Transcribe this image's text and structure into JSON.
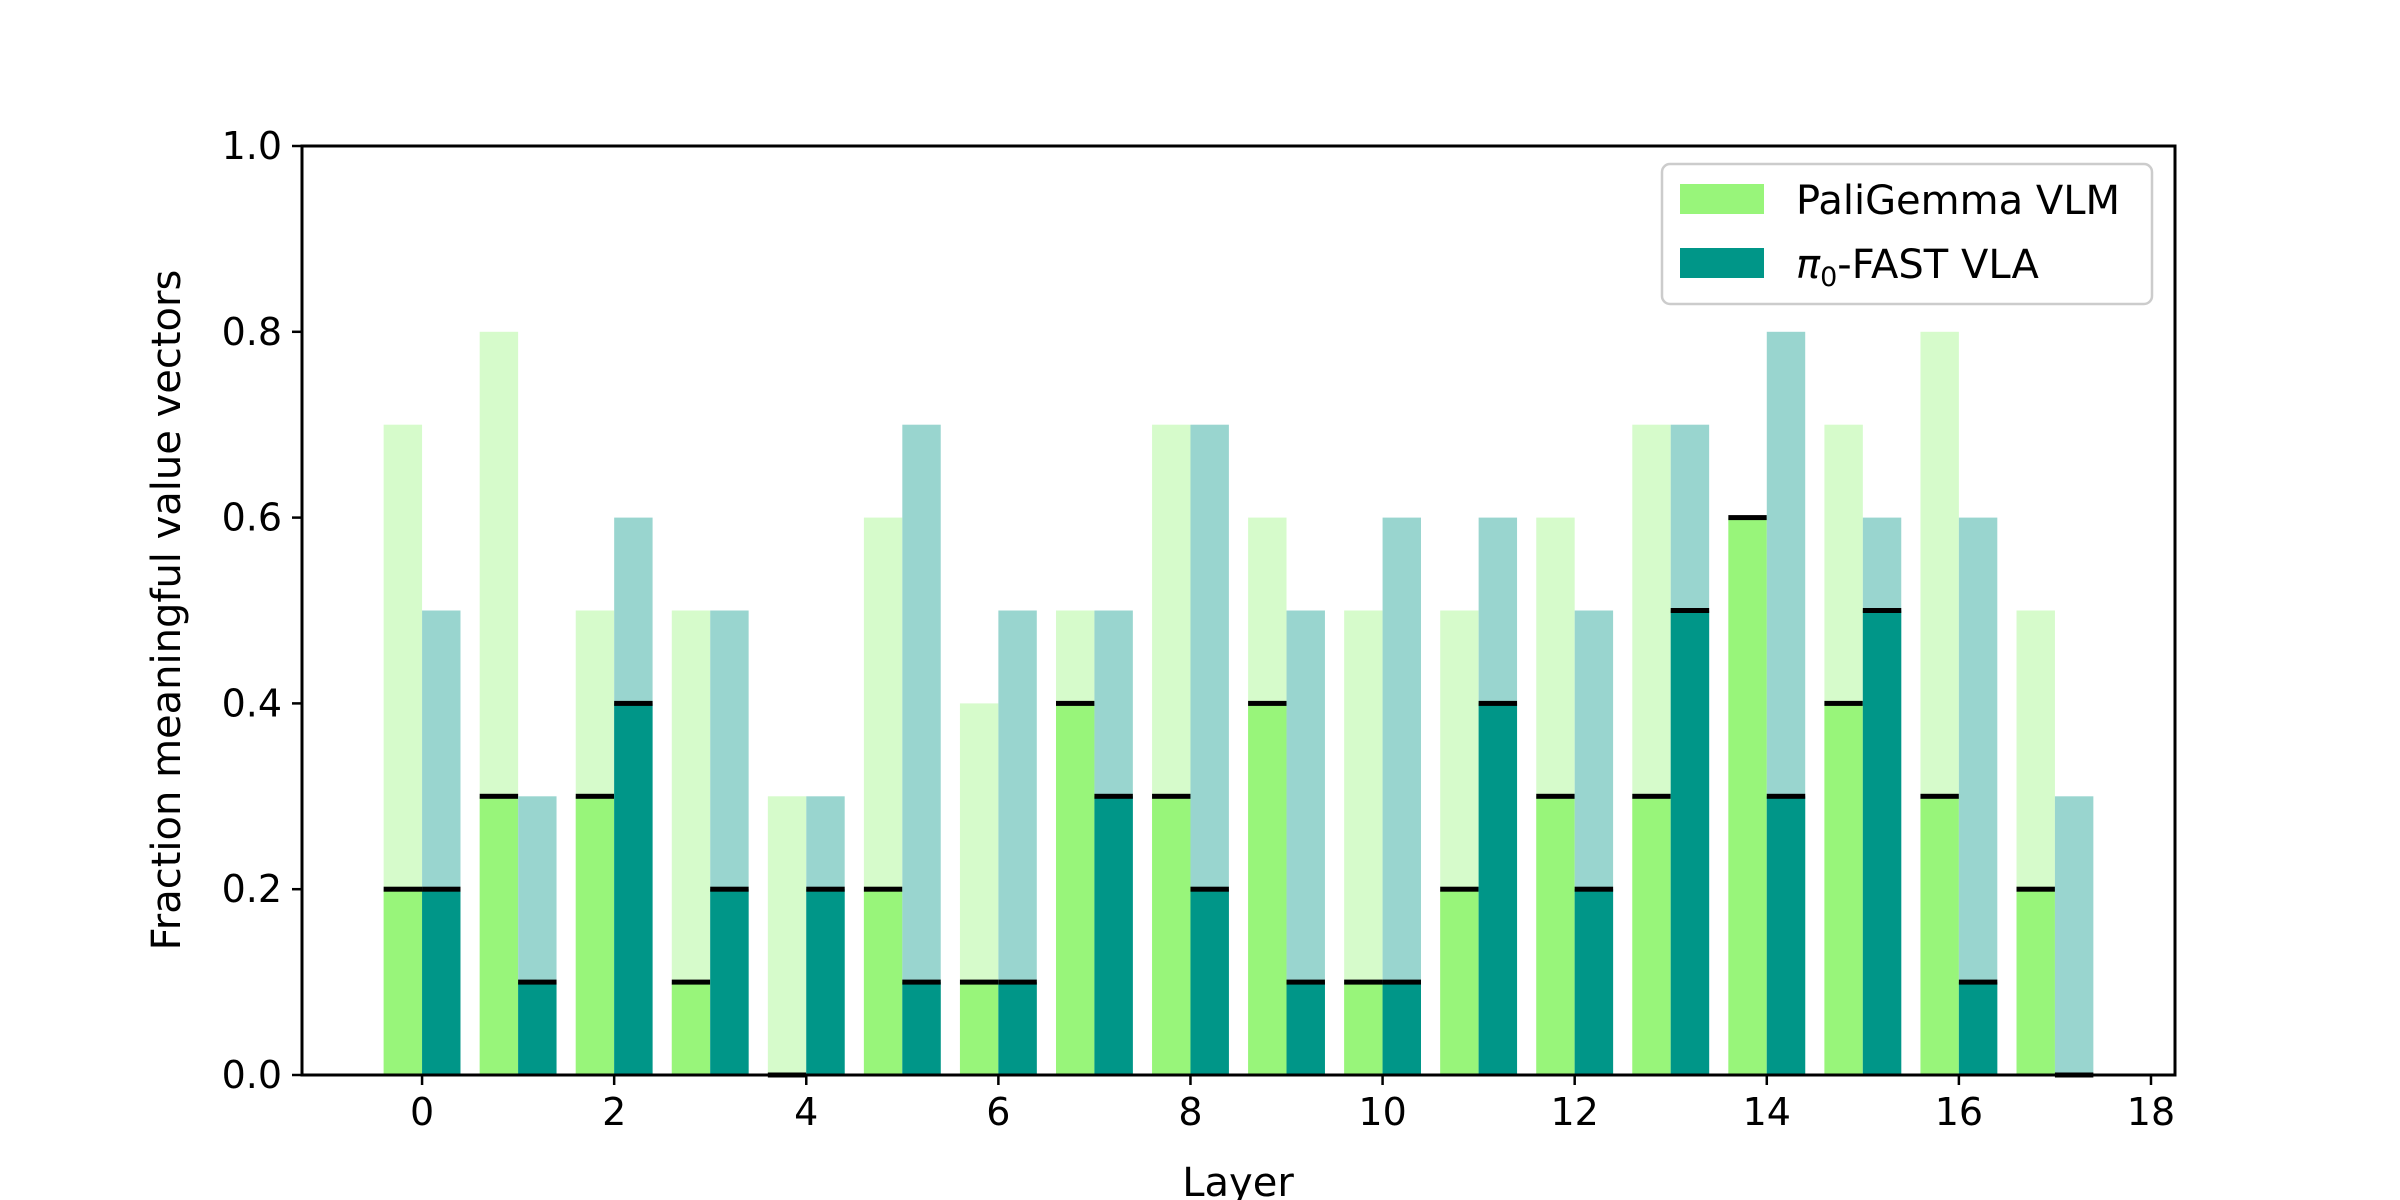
{
  "chart_data": {
    "type": "bar",
    "title": "",
    "xlabel": "Layer",
    "ylabel": "Fraction meaningful value vectors",
    "xlim": [
      -1.25,
      18.25
    ],
    "ylim": [
      0.0,
      1.0
    ],
    "x_ticks": [
      "0",
      "2",
      "4",
      "6",
      "8",
      "10",
      "12",
      "14",
      "16",
      "18"
    ],
    "y_ticks": [
      "0.0",
      "0.2",
      "0.4",
      "0.6",
      "0.8",
      "1.0"
    ],
    "grid": false,
    "legend_position": "top-right",
    "layers": [
      0,
      1,
      2,
      3,
      4,
      5,
      6,
      7,
      8,
      9,
      10,
      11,
      12,
      13,
      14,
      15,
      16,
      17
    ],
    "series": [
      {
        "name": "PaliGemma VLM",
        "legend_label": "PaliGemma VLM",
        "color": "#98f57a",
        "light_color": "#d6fbcb",
        "outer_values": [
          0.7,
          0.8,
          0.5,
          0.5,
          0.3,
          0.6,
          0.4,
          0.5,
          0.7,
          0.6,
          0.5,
          0.5,
          0.6,
          0.7,
          0.6,
          0.7,
          0.8,
          0.5
        ],
        "inner_values": [
          0.2,
          0.3,
          0.3,
          0.1,
          0.0,
          0.2,
          0.1,
          0.4,
          0.3,
          0.4,
          0.1,
          0.2,
          0.3,
          0.3,
          0.6,
          0.4,
          0.3,
          0.2
        ]
      },
      {
        "name": "π0-FAST VLA",
        "legend_label_main": "π",
        "legend_label_sub": "0",
        "legend_label_rest": "-FAST VLA",
        "color": "#009688",
        "light_color": "#99d5cf",
        "outer_values": [
          0.5,
          0.3,
          0.6,
          0.5,
          0.3,
          0.7,
          0.5,
          0.5,
          0.7,
          0.5,
          0.6,
          0.6,
          0.5,
          0.7,
          0.8,
          0.6,
          0.6,
          0.3
        ],
        "inner_values": [
          0.2,
          0.1,
          0.4,
          0.2,
          0.2,
          0.1,
          0.1,
          0.3,
          0.2,
          0.1,
          0.1,
          0.4,
          0.2,
          0.5,
          0.3,
          0.5,
          0.1,
          0.0
        ]
      }
    ]
  }
}
